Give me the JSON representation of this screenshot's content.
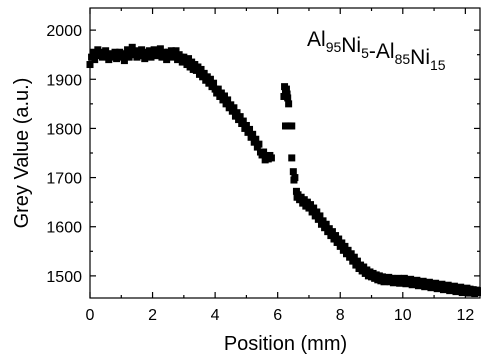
{
  "chart_data": {
    "type": "scatter",
    "title": "",
    "xlabel": "Position (mm)",
    "ylabel": "Grey Value (a.u.)",
    "xlim": [
      0,
      12.5
    ],
    "ylim": [
      1455,
      2045
    ],
    "grid": false,
    "x_ticks": [
      0,
      2,
      4,
      6,
      8,
      10,
      12
    ],
    "x_tick_labels": [
      "0",
      "2",
      "4",
      "6",
      "8",
      "10",
      "12"
    ],
    "y_ticks": [
      1500,
      1600,
      1700,
      1800,
      1900,
      2000
    ],
    "y_tick_labels": [
      "1500",
      "1600",
      "1700",
      "1800",
      "1900",
      "2000"
    ],
    "annotation": {
      "parts": [
        {
          "text": "Al",
          "sub": false
        },
        {
          "text": "95",
          "sub": true
        },
        {
          "text": "Ni",
          "sub": false
        },
        {
          "text": "5",
          "sub": true
        },
        {
          "text": "-Al",
          "sub": false
        },
        {
          "text": "85",
          "sub": true
        },
        {
          "text": "Ni",
          "sub": false
        },
        {
          "text": "15",
          "sub": true
        }
      ]
    },
    "series": [
      {
        "marker": "square",
        "color": "#000000",
        "points": [
          [
            0.0,
            1930
          ],
          [
            0.05,
            1945
          ],
          [
            0.1,
            1955
          ],
          [
            0.15,
            1940
          ],
          [
            0.2,
            1950
          ],
          [
            0.25,
            1960
          ],
          [
            0.3,
            1948
          ],
          [
            0.35,
            1955
          ],
          [
            0.4,
            1945
          ],
          [
            0.45,
            1952
          ],
          [
            0.5,
            1958
          ],
          [
            0.55,
            1948
          ],
          [
            0.6,
            1940
          ],
          [
            0.65,
            1952
          ],
          [
            0.7,
            1945
          ],
          [
            0.75,
            1950
          ],
          [
            0.8,
            1955
          ],
          [
            0.85,
            1942
          ],
          [
            0.9,
            1948
          ],
          [
            0.95,
            1955
          ],
          [
            1.0,
            1945
          ],
          [
            1.05,
            1950
          ],
          [
            1.1,
            1938
          ],
          [
            1.15,
            1952
          ],
          [
            1.2,
            1960
          ],
          [
            1.25,
            1945
          ],
          [
            1.3,
            1955
          ],
          [
            1.35,
            1965
          ],
          [
            1.4,
            1950
          ],
          [
            1.45,
            1958
          ],
          [
            1.5,
            1945
          ],
          [
            1.55,
            1955
          ],
          [
            1.6,
            1948
          ],
          [
            1.65,
            1960
          ],
          [
            1.7,
            1950
          ],
          [
            1.75,
            1942
          ],
          [
            1.8,
            1955
          ],
          [
            1.85,
            1948
          ],
          [
            1.9,
            1958
          ],
          [
            1.95,
            1945
          ],
          [
            2.0,
            1955
          ],
          [
            2.05,
            1960
          ],
          [
            2.1,
            1948
          ],
          [
            2.15,
            1955
          ],
          [
            2.2,
            1950
          ],
          [
            2.25,
            1962
          ],
          [
            2.3,
            1945
          ],
          [
            2.35,
            1955
          ],
          [
            2.4,
            1950
          ],
          [
            2.45,
            1940
          ],
          [
            2.5,
            1955
          ],
          [
            2.55,
            1948
          ],
          [
            2.6,
            1958
          ],
          [
            2.65,
            1945
          ],
          [
            2.7,
            1952
          ],
          [
            2.75,
            1958
          ],
          [
            2.8,
            1940
          ],
          [
            2.85,
            1950
          ],
          [
            2.9,
            1945
          ],
          [
            2.95,
            1935
          ],
          [
            3.0,
            1945
          ],
          [
            3.05,
            1938
          ],
          [
            3.1,
            1930
          ],
          [
            3.15,
            1942
          ],
          [
            3.2,
            1925
          ],
          [
            3.25,
            1935
          ],
          [
            3.3,
            1920
          ],
          [
            3.35,
            1930
          ],
          [
            3.4,
            1918
          ],
          [
            3.45,
            1925
          ],
          [
            3.5,
            1910
          ],
          [
            3.55,
            1920
          ],
          [
            3.6,
            1905
          ],
          [
            3.65,
            1912
          ],
          [
            3.7,
            1898
          ],
          [
            3.75,
            1905
          ],
          [
            3.8,
            1892
          ],
          [
            3.85,
            1900
          ],
          [
            3.9,
            1885
          ],
          [
            3.95,
            1892
          ],
          [
            4.0,
            1880
          ],
          [
            4.05,
            1872
          ],
          [
            4.1,
            1880
          ],
          [
            4.15,
            1865
          ],
          [
            4.2,
            1872
          ],
          [
            4.25,
            1858
          ],
          [
            4.3,
            1866
          ],
          [
            4.35,
            1850
          ],
          [
            4.4,
            1858
          ],
          [
            4.45,
            1842
          ],
          [
            4.5,
            1848
          ],
          [
            4.55,
            1835
          ],
          [
            4.6,
            1842
          ],
          [
            4.65,
            1825
          ],
          [
            4.7,
            1832
          ],
          [
            4.75,
            1818
          ],
          [
            4.8,
            1824
          ],
          [
            4.85,
            1810
          ],
          [
            4.9,
            1815
          ],
          [
            4.95,
            1800
          ],
          [
            5.0,
            1806
          ],
          [
            5.05,
            1792
          ],
          [
            5.1,
            1798
          ],
          [
            5.15,
            1782
          ],
          [
            5.2,
            1788
          ],
          [
            5.25,
            1772
          ],
          [
            5.3,
            1778
          ],
          [
            5.35,
            1762
          ],
          [
            5.4,
            1768
          ],
          [
            5.45,
            1752
          ],
          [
            5.5,
            1746
          ],
          [
            5.55,
            1752
          ],
          [
            5.6,
            1736
          ],
          [
            5.65,
            1742
          ],
          [
            5.7,
            1738
          ],
          [
            5.75,
            1745
          ],
          [
            5.8,
            1740
          ],
          [
            6.2,
            1865
          ],
          [
            6.22,
            1885
          ],
          [
            6.25,
            1875
          ],
          [
            6.28,
            1880
          ],
          [
            6.3,
            1870
          ],
          [
            6.32,
            1862
          ],
          [
            6.35,
            1850
          ],
          [
            6.25,
            1805
          ],
          [
            6.3,
            1805
          ],
          [
            6.35,
            1805
          ],
          [
            6.4,
            1805
          ],
          [
            6.45,
            1805
          ],
          [
            6.45,
            1740
          ],
          [
            6.5,
            1712
          ],
          [
            6.52,
            1695
          ],
          [
            6.55,
            1700
          ],
          [
            6.6,
            1672
          ],
          [
            6.62,
            1660
          ],
          [
            6.65,
            1665
          ],
          [
            6.7,
            1655
          ],
          [
            6.75,
            1660
          ],
          [
            6.8,
            1648
          ],
          [
            6.85,
            1655
          ],
          [
            6.9,
            1642
          ],
          [
            6.95,
            1650
          ],
          [
            7.0,
            1638
          ],
          [
            7.05,
            1645
          ],
          [
            7.1,
            1630
          ],
          [
            7.15,
            1638
          ],
          [
            7.2,
            1622
          ],
          [
            7.25,
            1630
          ],
          [
            7.3,
            1615
          ],
          [
            7.35,
            1622
          ],
          [
            7.4,
            1605
          ],
          [
            7.45,
            1612
          ],
          [
            7.5,
            1598
          ],
          [
            7.55,
            1605
          ],
          [
            7.6,
            1590
          ],
          [
            7.65,
            1596
          ],
          [
            7.7,
            1582
          ],
          [
            7.75,
            1590
          ],
          [
            7.8,
            1575
          ],
          [
            7.85,
            1582
          ],
          [
            7.9,
            1568
          ],
          [
            7.95,
            1575
          ],
          [
            8.0,
            1560
          ],
          [
            8.05,
            1567
          ],
          [
            8.1,
            1552
          ],
          [
            8.15,
            1560
          ],
          [
            8.2,
            1545
          ],
          [
            8.25,
            1552
          ],
          [
            8.3,
            1538
          ],
          [
            8.35,
            1545
          ],
          [
            8.4,
            1530
          ],
          [
            8.45,
            1538
          ],
          [
            8.5,
            1522
          ],
          [
            8.55,
            1530
          ],
          [
            8.6,
            1515
          ],
          [
            8.65,
            1522
          ],
          [
            8.7,
            1510
          ],
          [
            8.75,
            1518
          ],
          [
            8.8,
            1505
          ],
          [
            8.85,
            1512
          ],
          [
            8.9,
            1500
          ],
          [
            8.95,
            1508
          ],
          [
            9.0,
            1498
          ],
          [
            9.05,
            1505
          ],
          [
            9.1,
            1495
          ],
          [
            9.15,
            1502
          ],
          [
            9.2,
            1492
          ],
          [
            9.25,
            1500
          ],
          [
            9.3,
            1490
          ],
          [
            9.35,
            1498
          ],
          [
            9.4,
            1488
          ],
          [
            9.45,
            1496
          ],
          [
            9.5,
            1490
          ],
          [
            9.55,
            1497
          ],
          [
            9.6,
            1488
          ],
          [
            9.65,
            1495
          ],
          [
            9.7,
            1486
          ],
          [
            9.75,
            1494
          ],
          [
            9.8,
            1488
          ],
          [
            9.85,
            1495
          ],
          [
            9.9,
            1485
          ],
          [
            9.95,
            1492
          ],
          [
            10.0,
            1488
          ],
          [
            10.05,
            1495
          ],
          [
            10.1,
            1484
          ],
          [
            10.15,
            1492
          ],
          [
            10.2,
            1486
          ],
          [
            10.25,
            1493
          ],
          [
            10.3,
            1482
          ],
          [
            10.35,
            1490
          ],
          [
            10.4,
            1484
          ],
          [
            10.45,
            1491
          ],
          [
            10.5,
            1480
          ],
          [
            10.55,
            1488
          ],
          [
            10.6,
            1482
          ],
          [
            10.65,
            1489
          ],
          [
            10.7,
            1478
          ],
          [
            10.75,
            1486
          ],
          [
            10.8,
            1480
          ],
          [
            10.85,
            1487
          ],
          [
            10.9,
            1476
          ],
          [
            10.95,
            1484
          ],
          [
            11.0,
            1478
          ],
          [
            11.05,
            1485
          ],
          [
            11.1,
            1474
          ],
          [
            11.15,
            1482
          ],
          [
            11.2,
            1476
          ],
          [
            11.25,
            1483
          ],
          [
            11.3,
            1472
          ],
          [
            11.35,
            1480
          ],
          [
            11.4,
            1474
          ],
          [
            11.45,
            1481
          ],
          [
            11.5,
            1470
          ],
          [
            11.55,
            1478
          ],
          [
            11.6,
            1472
          ],
          [
            11.65,
            1479
          ],
          [
            11.7,
            1468
          ],
          [
            11.75,
            1476
          ],
          [
            11.8,
            1470
          ],
          [
            11.85,
            1477
          ],
          [
            11.9,
            1466
          ],
          [
            11.95,
            1474
          ],
          [
            12.0,
            1468
          ],
          [
            12.05,
            1475
          ],
          [
            12.1,
            1465
          ],
          [
            12.15,
            1473
          ],
          [
            12.2,
            1466
          ],
          [
            12.25,
            1472
          ],
          [
            12.3,
            1464
          ],
          [
            12.35,
            1471
          ],
          [
            12.4,
            1466
          ],
          [
            12.45,
            1470
          ]
        ]
      }
    ]
  }
}
